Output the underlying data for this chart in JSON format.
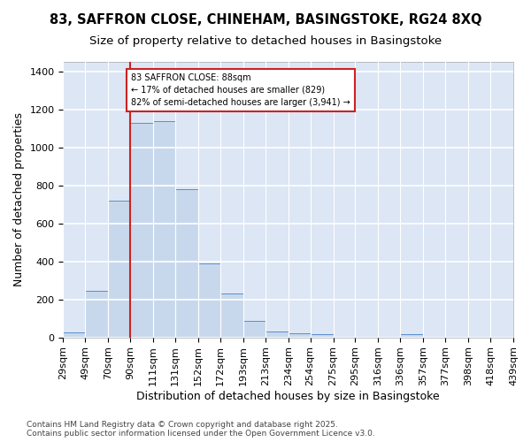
{
  "title_line1": "83, SAFFRON CLOSE, CHINEHAM, BASINGSTOKE, RG24 8XQ",
  "title_line2": "Size of property relative to detached houses in Basingstoke",
  "xlabel": "Distribution of detached houses by size in Basingstoke",
  "ylabel": "Number of detached properties",
  "bin_edges": [
    29,
    49,
    70,
    90,
    111,
    131,
    152,
    172,
    193,
    213,
    234,
    254,
    275,
    295,
    316,
    336,
    357,
    377,
    398,
    418,
    439
  ],
  "bar_heights": [
    28,
    245,
    720,
    1128,
    1138,
    778,
    388,
    232,
    88,
    30,
    22,
    18,
    0,
    0,
    0,
    15,
    0,
    0,
    0,
    0
  ],
  "bar_facecolor": "#c8d8ec",
  "bar_edgecolor": "#5b8fc9",
  "fig_bg_color": "#ffffff",
  "plot_bg_color": "#dce6f5",
  "grid_color": "#ffffff",
  "vline_x": 90,
  "vline_color": "#cc2222",
  "annotation_text": "83 SAFFRON CLOSE: 88sqm\n← 17% of detached houses are smaller (829)\n82% of semi-detached houses are larger (3,941) →",
  "annotation_box_color": "#ffffff",
  "annotation_box_edgecolor": "#cc2222",
  "ylim": [
    0,
    1450
  ],
  "yticks": [
    0,
    200,
    400,
    600,
    800,
    1000,
    1200,
    1400
  ],
  "footer_text": "Contains HM Land Registry data © Crown copyright and database right 2025.\nContains public sector information licensed under the Open Government Licence v3.0.",
  "title_fontsize": 10.5,
  "subtitle_fontsize": 9.5,
  "axis_label_fontsize": 9,
  "tick_fontsize": 8,
  "footer_fontsize": 6.5
}
